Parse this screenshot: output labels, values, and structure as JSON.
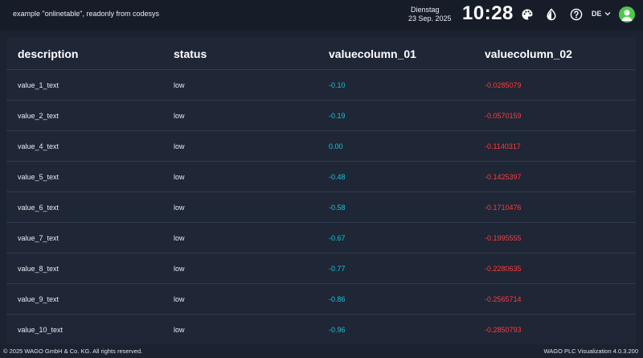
{
  "header": {
    "title": "example \"onlinetable\", readonly from codesys",
    "day": "Dienstag",
    "date": "23 Sep. 2025",
    "time": "10:28",
    "language": "DE",
    "icons": [
      "palette-icon",
      "contrast-icon",
      "help-icon",
      "chevron-down-icon",
      "user-icon"
    ]
  },
  "table": {
    "columns": [
      "description",
      "status",
      "valuecolumn_01",
      "valuecolumn_02"
    ],
    "rows": [
      {
        "description": "value_1_text",
        "status": "low",
        "v1": "-0.10",
        "v2": "-0.0285079"
      },
      {
        "description": "value_2_text",
        "status": "low",
        "v1": "-0.19",
        "v2": "-0.0570159"
      },
      {
        "description": "value_4_text",
        "status": "low",
        "v1": "0.00",
        "v2": "-0.1140317"
      },
      {
        "description": "value_5_text",
        "status": "low",
        "v1": "-0.48",
        "v2": "-0.1425397"
      },
      {
        "description": "value_6_text",
        "status": "low",
        "v1": "-0.58",
        "v2": "-0.1710476"
      },
      {
        "description": "value_7_text",
        "status": "low",
        "v1": "-0.67",
        "v2": "-0.1995555"
      },
      {
        "description": "value_8_text",
        "status": "low",
        "v1": "-0.77",
        "v2": "-0.2280635"
      },
      {
        "description": "value_9_text",
        "status": "low",
        "v1": "-0.86",
        "v2": "-0.2565714"
      },
      {
        "description": "value_10_text",
        "status": "low",
        "v1": "-0.96",
        "v2": "-0.2850793"
      }
    ]
  },
  "footer": {
    "copyright": "© 2025 WAGO GmbH & Co. KG. All rights reserved.",
    "version": "WAGO PLC Visualization 4.0.3.200"
  },
  "colors": {
    "background": "#1b2230",
    "topbar": "#171d28",
    "panel": "#1f2636",
    "value_column_01": "#19c6d6",
    "value_column_02": "#ff3b3b",
    "avatar": "#4fc94a"
  }
}
